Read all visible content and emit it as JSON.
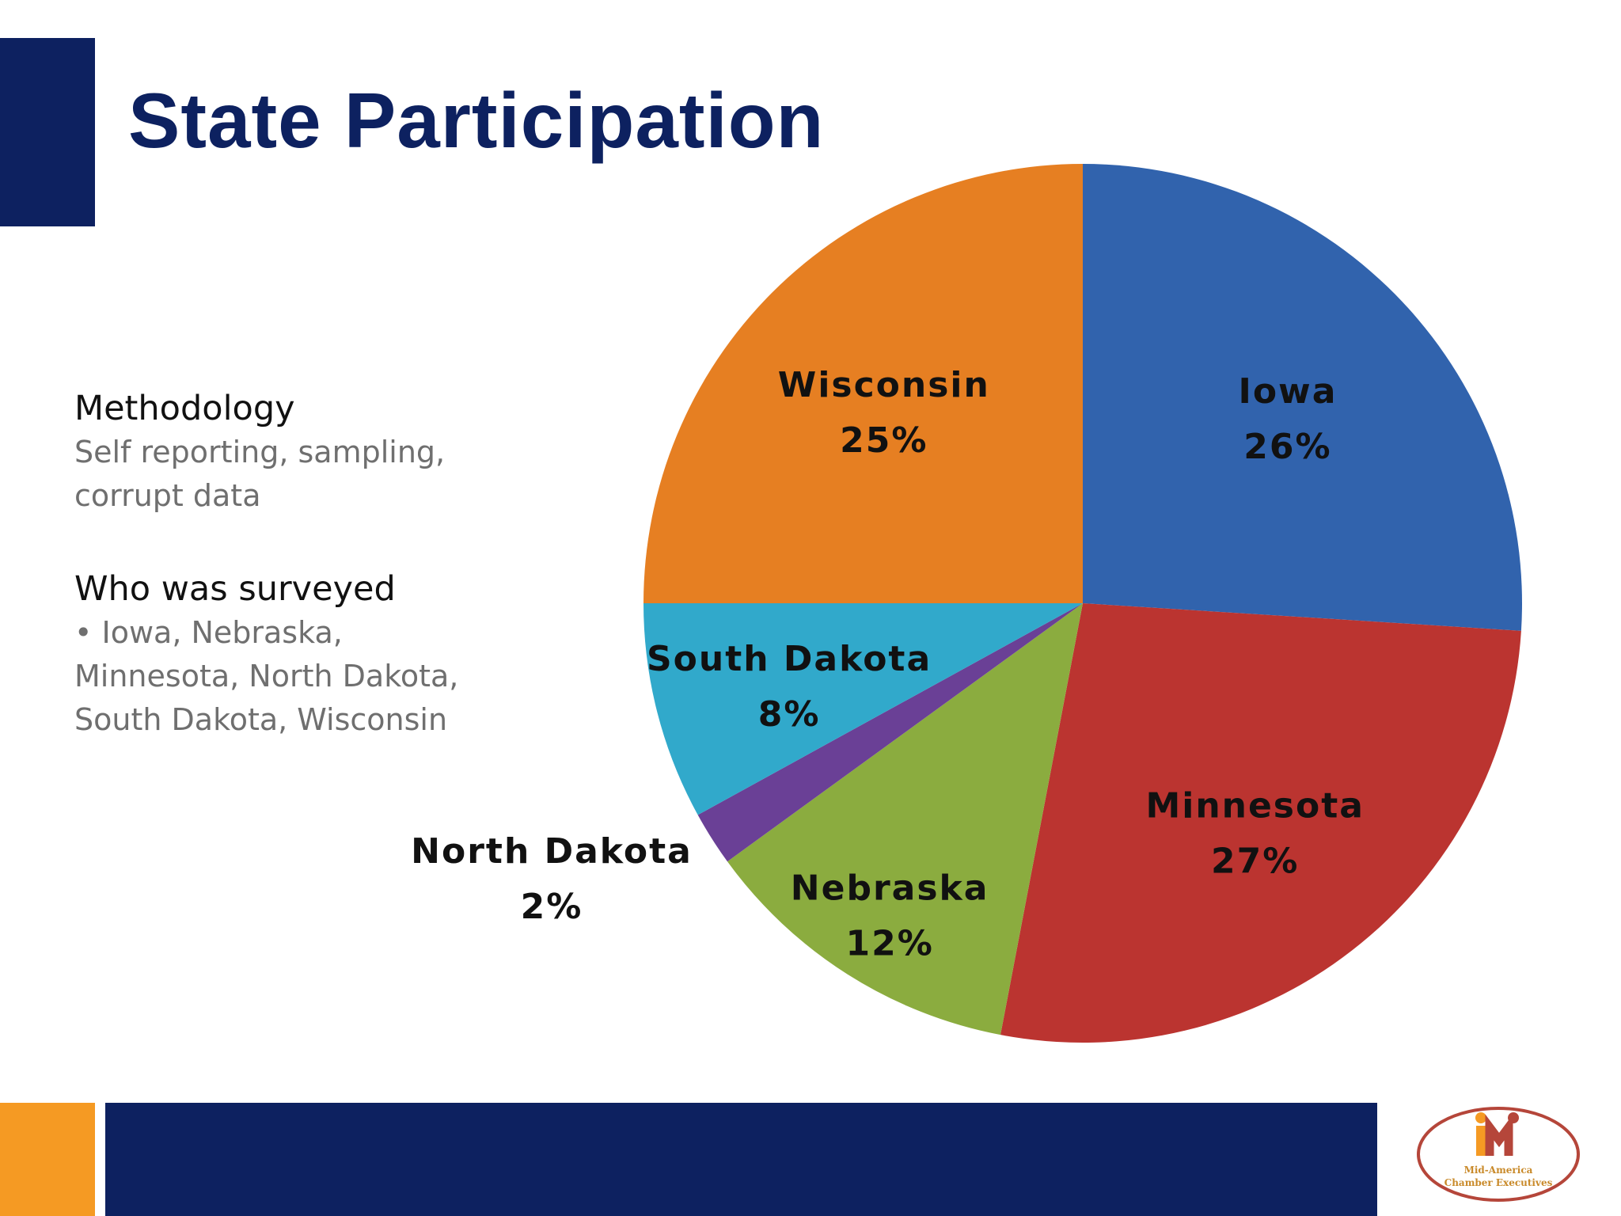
{
  "slide": {
    "title": "State Participation"
  },
  "side_text": {
    "methodology_heading": "Methodology",
    "methodology_lines": [
      "Self reporting, sampling,",
      "corrupt data"
    ],
    "surveyed_heading": "Who was surveyed",
    "surveyed_lines": [
      "• Iowa, Nebraska,",
      "Minnesota, North Dakota,",
      "South Dakota, Wisconsin"
    ]
  },
  "logo": {
    "text_line1": "Mid-America",
    "text_line2": "Chamber Executives"
  },
  "colors": {
    "navy": "#0d2160",
    "orange_accent": "#f59a23"
  },
  "chart_data": {
    "type": "pie",
    "slices": [
      {
        "label": "Iowa",
        "value": 26,
        "value_label": "26%",
        "color": "#3163ad"
      },
      {
        "label": "Minnesota",
        "value": 27,
        "value_label": "27%",
        "color": "#bb3430"
      },
      {
        "label": "Nebraska",
        "value": 12,
        "value_label": "12%",
        "color": "#8bac3f"
      },
      {
        "label": "North Dakota",
        "value": 2,
        "value_label": "2%",
        "color": "#6a4096"
      },
      {
        "label": "South Dakota",
        "value": 8,
        "value_label": "8%",
        "color": "#31a9cb"
      },
      {
        "label": "Wisconsin",
        "value": 25,
        "value_label": "25%",
        "color": "#e67f22"
      }
    ],
    "start": "12 o'clock",
    "direction": "clockwise",
    "legend": "none",
    "labels": "data labels on slices; North Dakota label outside"
  }
}
